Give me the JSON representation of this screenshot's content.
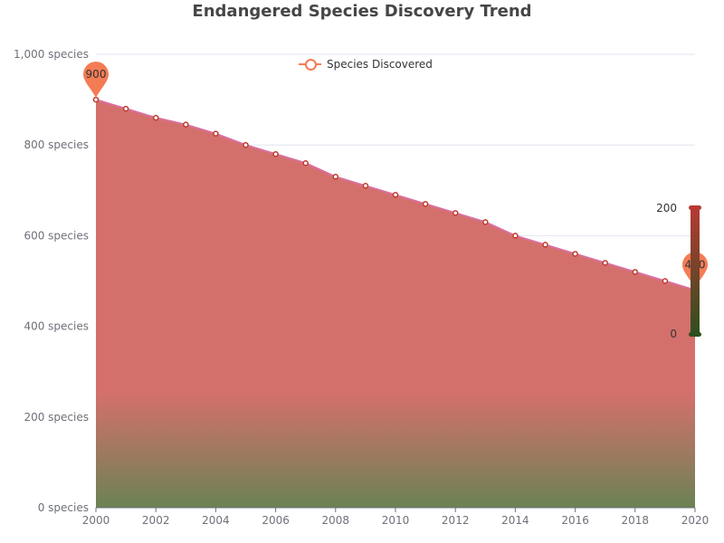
{
  "chart_data": {
    "type": "area",
    "title": "Endangered Species Discovery Trend",
    "x": [
      2000,
      2001,
      2002,
      2003,
      2004,
      2005,
      2006,
      2007,
      2008,
      2009,
      2010,
      2011,
      2012,
      2013,
      2014,
      2015,
      2016,
      2017,
      2018,
      2019,
      2020
    ],
    "x_tick_labels": [
      "2000",
      "2002",
      "2004",
      "2006",
      "2008",
      "2010",
      "2012",
      "2014",
      "2016",
      "2018",
      "2020"
    ],
    "y_tick_labels": [
      "0 species",
      "200 species",
      "400 species",
      "600 species",
      "800 species",
      "1,000 species"
    ],
    "ylim": [
      0,
      1000
    ],
    "series": [
      {
        "name": "Species Discovered",
        "values": [
          900,
          880,
          860,
          845,
          825,
          800,
          780,
          760,
          730,
          710,
          690,
          670,
          650,
          630,
          600,
          580,
          560,
          540,
          520,
          500,
          480
        ]
      }
    ],
    "markers": [
      {
        "type": "max",
        "label": "900"
      },
      {
        "type": "min",
        "label": "480"
      }
    ],
    "visual_map": {
      "min_label": "0",
      "max_label": "200",
      "min_color": "#2f4f1f",
      "max_color": "#b63a33"
    },
    "grid": "horizontal",
    "legend_position": "top-center",
    "colors": {
      "line": "#d970a0",
      "area": "#d4706c",
      "area_low": "#6b8254",
      "point": "#c0392b",
      "pin": "#f47c55"
    }
  }
}
